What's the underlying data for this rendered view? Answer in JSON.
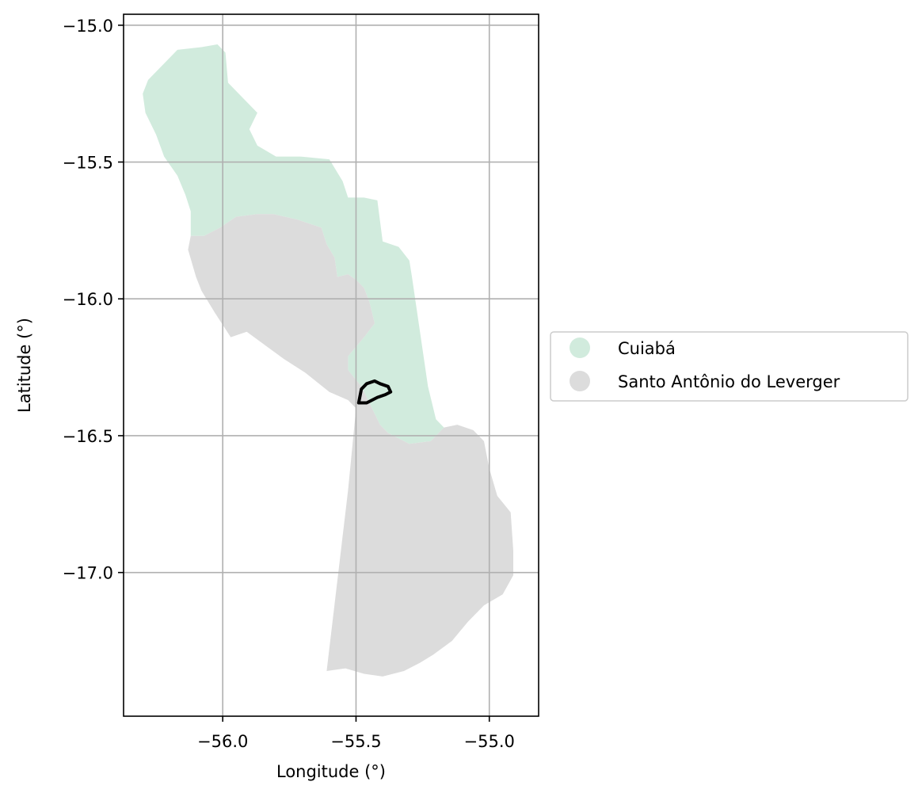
{
  "chart_data": {
    "type": "map",
    "xlabel": "Longitude (°)",
    "ylabel": "Latitude (°)",
    "xlim": [
      -56.372,
      -54.815
    ],
    "ylim": [
      -17.525,
      -14.96
    ],
    "x_ticks": [
      {
        "value": -56.0,
        "label": "−56.0"
      },
      {
        "value": -55.5,
        "label": "−55.5"
      },
      {
        "value": -55.0,
        "label": "−55.0"
      }
    ],
    "y_ticks": [
      {
        "value": -15.0,
        "label": "−15.0"
      },
      {
        "value": -15.5,
        "label": "−15.5"
      },
      {
        "value": -16.0,
        "label": "−16.0"
      },
      {
        "value": -16.5,
        "label": "−16.5"
      },
      {
        "value": -17.0,
        "label": "−17.0"
      }
    ],
    "grid": true,
    "legend_position": "right-center",
    "regions": [
      {
        "name": "Cuiabá",
        "color": "#d1ebdd",
        "boundary": [
          [
            -56.17,
            -15.09
          ],
          [
            -56.08,
            -15.08
          ],
          [
            -56.02,
            -15.07
          ],
          [
            -55.99,
            -15.1
          ],
          [
            -55.98,
            -15.21
          ],
          [
            -55.92,
            -15.27
          ],
          [
            -55.87,
            -15.32
          ],
          [
            -55.9,
            -15.38
          ],
          [
            -55.87,
            -15.44
          ],
          [
            -55.8,
            -15.48
          ],
          [
            -55.71,
            -15.48
          ],
          [
            -55.6,
            -15.49
          ],
          [
            -55.55,
            -15.57
          ],
          [
            -55.53,
            -15.63
          ],
          [
            -55.47,
            -15.63
          ],
          [
            -55.42,
            -15.64
          ],
          [
            -55.4,
            -15.79
          ],
          [
            -55.34,
            -15.81
          ],
          [
            -55.3,
            -15.86
          ],
          [
            -55.29,
            -15.92
          ],
          [
            -55.23,
            -16.32
          ],
          [
            -55.2,
            -16.44
          ],
          [
            -55.17,
            -16.47
          ],
          [
            -55.22,
            -16.52
          ],
          [
            -55.3,
            -16.53
          ],
          [
            -55.38,
            -16.49
          ],
          [
            -55.41,
            -16.46
          ],
          [
            -55.45,
            -16.38
          ],
          [
            -55.48,
            -16.32
          ],
          [
            -55.53,
            -16.26
          ],
          [
            -55.53,
            -16.21
          ],
          [
            -55.47,
            -16.14
          ],
          [
            -55.43,
            -16.09
          ],
          [
            -55.45,
            -16.01
          ],
          [
            -55.47,
            -15.96
          ],
          [
            -55.5,
            -15.93
          ],
          [
            -55.53,
            -15.91
          ],
          [
            -55.57,
            -15.92
          ],
          [
            -55.58,
            -15.85
          ],
          [
            -55.61,
            -15.8
          ],
          [
            -55.63,
            -15.74
          ],
          [
            -55.72,
            -15.71
          ],
          [
            -55.81,
            -15.69
          ],
          [
            -55.87,
            -15.69
          ],
          [
            -55.95,
            -15.7
          ],
          [
            -56.01,
            -15.74
          ],
          [
            -56.07,
            -15.77
          ],
          [
            -56.12,
            -15.77
          ],
          [
            -56.12,
            -15.68
          ],
          [
            -56.14,
            -15.62
          ],
          [
            -56.17,
            -15.55
          ],
          [
            -56.22,
            -15.48
          ],
          [
            -56.25,
            -15.4
          ],
          [
            -56.29,
            -15.32
          ],
          [
            -56.3,
            -15.25
          ],
          [
            -56.28,
            -15.2
          ]
        ]
      },
      {
        "name": "Santo Antônio do Leverger",
        "color": "#dcdcdc",
        "boundary": [
          [
            -56.12,
            -15.77
          ],
          [
            -56.07,
            -15.77
          ],
          [
            -56.01,
            -15.74
          ],
          [
            -55.95,
            -15.7
          ],
          [
            -55.87,
            -15.69
          ],
          [
            -55.81,
            -15.69
          ],
          [
            -55.72,
            -15.71
          ],
          [
            -55.63,
            -15.74
          ],
          [
            -55.61,
            -15.8
          ],
          [
            -55.58,
            -15.85
          ],
          [
            -55.57,
            -15.92
          ],
          [
            -55.53,
            -15.91
          ],
          [
            -55.5,
            -15.93
          ],
          [
            -55.47,
            -15.96
          ],
          [
            -55.45,
            -16.01
          ],
          [
            -55.43,
            -16.09
          ],
          [
            -55.47,
            -16.14
          ],
          [
            -55.53,
            -16.21
          ],
          [
            -55.53,
            -16.26
          ],
          [
            -55.48,
            -16.32
          ],
          [
            -55.45,
            -16.38
          ],
          [
            -55.41,
            -16.46
          ],
          [
            -55.38,
            -16.49
          ],
          [
            -55.3,
            -16.53
          ],
          [
            -55.22,
            -16.52
          ],
          [
            -55.17,
            -16.47
          ],
          [
            -55.12,
            -16.46
          ],
          [
            -55.06,
            -16.48
          ],
          [
            -55.02,
            -16.52
          ],
          [
            -55.0,
            -16.62
          ],
          [
            -54.97,
            -16.72
          ],
          [
            -54.92,
            -16.78
          ],
          [
            -54.91,
            -16.92
          ],
          [
            -54.91,
            -17.01
          ],
          [
            -54.95,
            -17.08
          ],
          [
            -55.02,
            -17.12
          ],
          [
            -55.08,
            -17.18
          ],
          [
            -55.14,
            -17.25
          ],
          [
            -55.21,
            -17.3
          ],
          [
            -55.26,
            -17.33
          ],
          [
            -55.32,
            -17.36
          ],
          [
            -55.4,
            -17.38
          ],
          [
            -55.47,
            -17.37
          ],
          [
            -55.54,
            -17.35
          ],
          [
            -55.61,
            -17.36
          ],
          [
            -55.53,
            -16.7
          ],
          [
            -55.5,
            -16.4
          ],
          [
            -55.53,
            -16.37
          ],
          [
            -55.6,
            -16.34
          ],
          [
            -55.69,
            -16.27
          ],
          [
            -55.77,
            -16.22
          ],
          [
            -55.84,
            -16.17
          ],
          [
            -55.91,
            -16.12
          ],
          [
            -55.97,
            -16.14
          ],
          [
            -56.03,
            -16.05
          ],
          [
            -56.08,
            -15.97
          ],
          [
            -56.1,
            -15.92
          ],
          [
            -56.13,
            -15.82
          ]
        ]
      }
    ],
    "highlight": {
      "color": "#000000",
      "boundary": [
        [
          -55.49,
          -16.38
        ],
        [
          -55.48,
          -16.33
        ],
        [
          -55.46,
          -16.31
        ],
        [
          -55.43,
          -16.3
        ],
        [
          -55.41,
          -16.31
        ],
        [
          -55.38,
          -16.32
        ],
        [
          -55.37,
          -16.34
        ],
        [
          -55.39,
          -16.35
        ],
        [
          -55.42,
          -16.36
        ],
        [
          -55.46,
          -16.38
        ]
      ]
    }
  },
  "legend": {
    "items": [
      {
        "label": "Cuiabá",
        "color": "#d1ebdd"
      },
      {
        "label": "Santo Antônio do Leverger",
        "color": "#dcdcdc"
      }
    ]
  }
}
